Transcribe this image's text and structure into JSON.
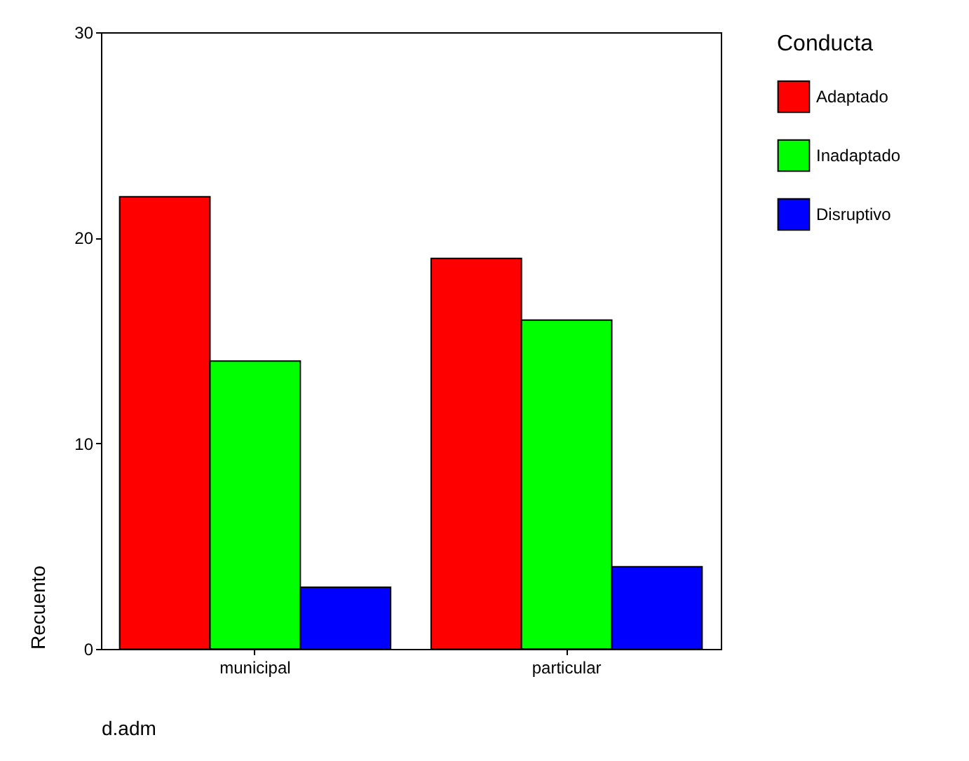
{
  "chart_data": {
    "type": "bar",
    "xlabel": "d.adm",
    "ylabel": "Recuento",
    "legend_title": "Conducta",
    "categories": [
      "municipal",
      "particular"
    ],
    "series": [
      {
        "name": "Adaptado",
        "color": "#ff0000",
        "values": [
          22,
          19
        ]
      },
      {
        "name": "Inadaptado",
        "color": "#00ff00",
        "values": [
          14,
          16
        ]
      },
      {
        "name": "Disruptivo",
        "color": "#0000ff",
        "values": [
          3,
          4
        ]
      }
    ],
    "ylim": [
      0,
      30
    ],
    "yticks": [
      0,
      10,
      20,
      30
    ],
    "grid": false,
    "legend": "right"
  }
}
